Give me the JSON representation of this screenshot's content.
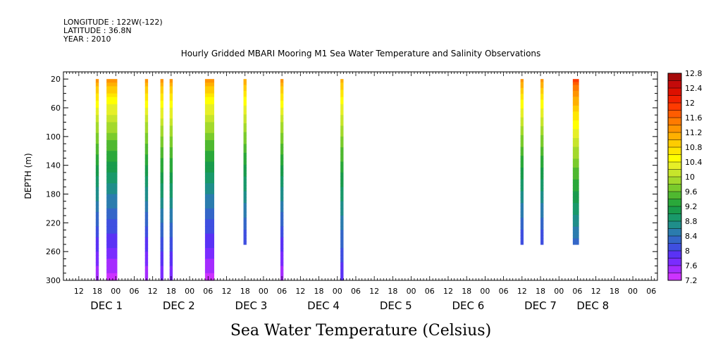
{
  "header": {
    "longitude": "LONGITUDE : 122W(-122)",
    "latitude": "LATITUDE : 36.8N",
    "year": "YEAR : 2010"
  },
  "chart_data": {
    "type": "heatmap",
    "title": "Hourly Gridded MBARI Mooring M1 Sea Water Temperature and Salinity Observations",
    "xlabel": "Sea Water Temperature (Celsius)",
    "ylabel": "DEPTH (m)",
    "x_unit": "hours since 2010-11-30 00:00",
    "xlim": [
      7,
      200
    ],
    "ylim": [
      300,
      10
    ],
    "yticks": [
      20,
      60,
      100,
      140,
      180,
      220,
      260,
      300
    ],
    "xticks": [
      {
        "h": 12,
        "label": "12"
      },
      {
        "h": 18,
        "label": "18"
      },
      {
        "h": 24,
        "label": "00"
      },
      {
        "h": 30,
        "label": "06"
      },
      {
        "h": 36,
        "label": "12"
      },
      {
        "h": 42,
        "label": "18"
      },
      {
        "h": 48,
        "label": "00"
      },
      {
        "h": 54,
        "label": "06"
      },
      {
        "h": 60,
        "label": "12"
      },
      {
        "h": 66,
        "label": "18"
      },
      {
        "h": 72,
        "label": "00"
      },
      {
        "h": 78,
        "label": "06"
      },
      {
        "h": 84,
        "label": "12"
      },
      {
        "h": 90,
        "label": "18"
      },
      {
        "h": 96,
        "label": "00"
      },
      {
        "h": 102,
        "label": "06"
      },
      {
        "h": 108,
        "label": "12"
      },
      {
        "h": 114,
        "label": "18"
      },
      {
        "h": 120,
        "label": "00"
      },
      {
        "h": 126,
        "label": "06"
      },
      {
        "h": 132,
        "label": "12"
      },
      {
        "h": 138,
        "label": "18"
      },
      {
        "h": 144,
        "label": "00"
      },
      {
        "h": 150,
        "label": "06"
      },
      {
        "h": 156,
        "label": "12"
      },
      {
        "h": 162,
        "label": "18"
      },
      {
        "h": 168,
        "label": "00"
      },
      {
        "h": 174,
        "label": "06"
      },
      {
        "h": 180,
        "label": "12"
      },
      {
        "h": 186,
        "label": "18"
      },
      {
        "h": 192,
        "label": "00"
      },
      {
        "h": 198,
        "label": "06"
      }
    ],
    "day_labels": [
      {
        "h": 21,
        "label": "DEC  1"
      },
      {
        "h": 44.5,
        "label": "DEC  2"
      },
      {
        "h": 68,
        "label": "DEC  3"
      },
      {
        "h": 91.5,
        "label": "DEC  4"
      },
      {
        "h": 115,
        "label": "DEC  5"
      },
      {
        "h": 138.5,
        "label": "DEC  6"
      },
      {
        "h": 162,
        "label": "DEC  7"
      },
      {
        "h": 179,
        "label": "DEC  8"
      }
    ],
    "colorbar": {
      "min": 7.2,
      "max": 12.8,
      "step": 0.2,
      "labels": [
        "7.2",
        "7.6",
        "8",
        "8.4",
        "8.8",
        "9.2",
        "9.6",
        "10",
        "10.4",
        "10.8",
        "11.2",
        "11.6",
        "12",
        "12.4",
        "12.8"
      ],
      "colors": [
        "#cc33ff",
        "#a52cff",
        "#7a2cff",
        "#5a32f5",
        "#3f4fe0",
        "#3466c8",
        "#2b7cae",
        "#1f8e8a",
        "#19996a",
        "#199b4c",
        "#2aa83a",
        "#4fb830",
        "#7acb2c",
        "#a3d92c",
        "#c7e52b",
        "#e6ef27",
        "#ffff00",
        "#ffe600",
        "#ffcc00",
        "#ffb000",
        "#ff9400",
        "#ff7a00",
        "#ff5c00",
        "#ff3a00",
        "#f22000",
        "#dd1000",
        "#c40a0a",
        "#a60a0a"
      ]
    },
    "series": [
      {
        "x": [
          17.5,
          18.5
        ],
        "depth": [
          20,
          300
        ],
        "top_temp": 11.4,
        "bottom_temp": 7.4
      },
      {
        "x": [
          21,
          24.5
        ],
        "depth": [
          20,
          300
        ],
        "top_temp": 11.4,
        "bottom_temp": 7.3
      },
      {
        "x": [
          33.5,
          34.5
        ],
        "depth": [
          20,
          300
        ],
        "top_temp": 11.4,
        "bottom_temp": 7.4
      },
      {
        "x": [
          38.5,
          39.5
        ],
        "depth": [
          20,
          300
        ],
        "top_temp": 11.4,
        "bottom_temp": 7.6
      },
      {
        "x": [
          41.5,
          42.5
        ],
        "depth": [
          20,
          300
        ],
        "top_temp": 11.4,
        "bottom_temp": 7.6
      },
      {
        "x": [
          53,
          56
        ],
        "depth": [
          20,
          300
        ],
        "top_temp": 11.4,
        "bottom_temp": 7.3
      },
      {
        "x": [
          65.5,
          66.5
        ],
        "depth": [
          20,
          250
        ],
        "top_temp": 11.3,
        "bottom_temp": 8.0
      },
      {
        "x": [
          77.5,
          78.5
        ],
        "depth": [
          20,
          300
        ],
        "top_temp": 11.4,
        "bottom_temp": 7.4
      },
      {
        "x": [
          97,
          98
        ],
        "depth": [
          20,
          300
        ],
        "top_temp": 11.2,
        "bottom_temp": 7.8
      },
      {
        "x": [
          155.5,
          156.5
        ],
        "depth": [
          20,
          250
        ],
        "top_temp": 11.4,
        "bottom_temp": 8.0
      },
      {
        "x": [
          162,
          163
        ],
        "depth": [
          20,
          250
        ],
        "top_temp": 11.4,
        "bottom_temp": 8.0
      },
      {
        "x": [
          172.5,
          174.5
        ],
        "depth": [
          20,
          250
        ],
        "top_temp": 12.0,
        "bottom_temp": 8.3
      }
    ]
  }
}
